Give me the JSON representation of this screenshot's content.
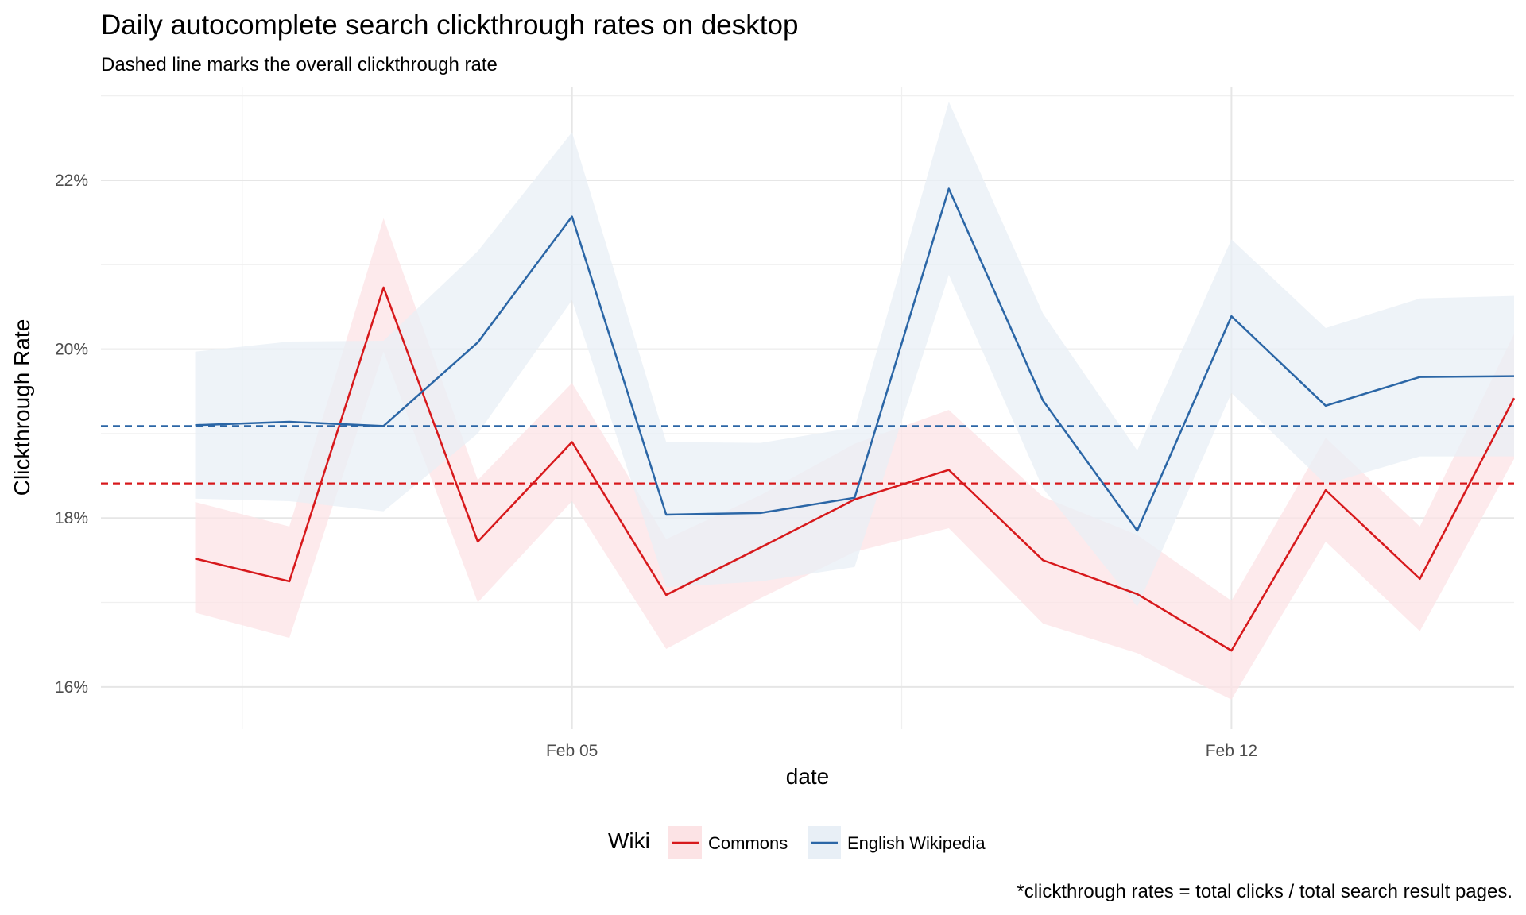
{
  "chart_data": {
    "type": "line",
    "title": "Daily autocomplete search clickthrough rates on desktop",
    "subtitle": "Dashed line marks the overall clickthrough rate",
    "xlabel": "date",
    "ylabel": "Clickthrough Rate",
    "caption": "*clickthrough rates = total clicks / total search result pages.",
    "x": [
      "2017-02-01",
      "2017-02-02",
      "2017-02-03",
      "2017-02-04",
      "2017-02-05",
      "2017-02-06",
      "2017-02-07",
      "2017-02-08",
      "2017-02-09",
      "2017-02-10",
      "2017-02-11",
      "2017-02-12",
      "2017-02-13",
      "2017-02-14",
      "2017-02-15"
    ],
    "xlim": [
      "2017-01-31",
      "2017-02-15"
    ],
    "x_ticks": [
      {
        "date": "2017-02-05",
        "label": "Feb 05"
      },
      {
        "date": "2017-02-12",
        "label": "Feb 12"
      }
    ],
    "ylim": [
      15.5,
      23.1
    ],
    "y_ticks": [
      {
        "value": 16,
        "label": "16%"
      },
      {
        "value": 18,
        "label": "18%"
      },
      {
        "value": 20,
        "label": "20%"
      },
      {
        "value": 22,
        "label": "22%"
      }
    ],
    "grid": true,
    "legend": {
      "title": "Wiki",
      "placement": "bottom"
    },
    "series": [
      {
        "name": "Commons",
        "color": "#d7191c",
        "band_color": "#fce3e5",
        "values": [
          17.52,
          17.25,
          20.73,
          17.72,
          18.9,
          17.09,
          17.65,
          18.22,
          18.57,
          17.5,
          17.1,
          16.43,
          18.33,
          17.28,
          19.42
        ],
        "lower": [
          16.88,
          16.58,
          19.97,
          17.0,
          18.2,
          16.45,
          17.05,
          17.6,
          17.88,
          16.75,
          16.4,
          15.85,
          17.72,
          16.66,
          18.7
        ],
        "upper": [
          18.19,
          17.9,
          21.55,
          18.45,
          19.6,
          17.75,
          18.27,
          18.88,
          19.28,
          18.25,
          17.8,
          17.02,
          18.95,
          17.9,
          20.18
        ],
        "overall": 18.41
      },
      {
        "name": "English Wikipedia",
        "color": "#2b66a6",
        "band_color": "#e8eff6",
        "values": [
          19.1,
          19.14,
          19.09,
          20.08,
          21.57,
          18.04,
          18.06,
          18.24,
          21.9,
          19.39,
          17.85,
          20.39,
          19.33,
          19.67,
          19.68
        ],
        "lower": [
          18.23,
          18.2,
          18.08,
          19.0,
          20.58,
          17.18,
          17.25,
          17.42,
          20.88,
          18.35,
          16.95,
          19.48,
          18.4,
          18.73,
          18.73
        ],
        "upper": [
          19.97,
          20.09,
          20.1,
          21.16,
          22.57,
          18.9,
          18.89,
          19.07,
          22.93,
          20.42,
          18.8,
          21.3,
          20.25,
          20.6,
          20.63
        ],
        "overall": 19.09
      }
    ]
  }
}
